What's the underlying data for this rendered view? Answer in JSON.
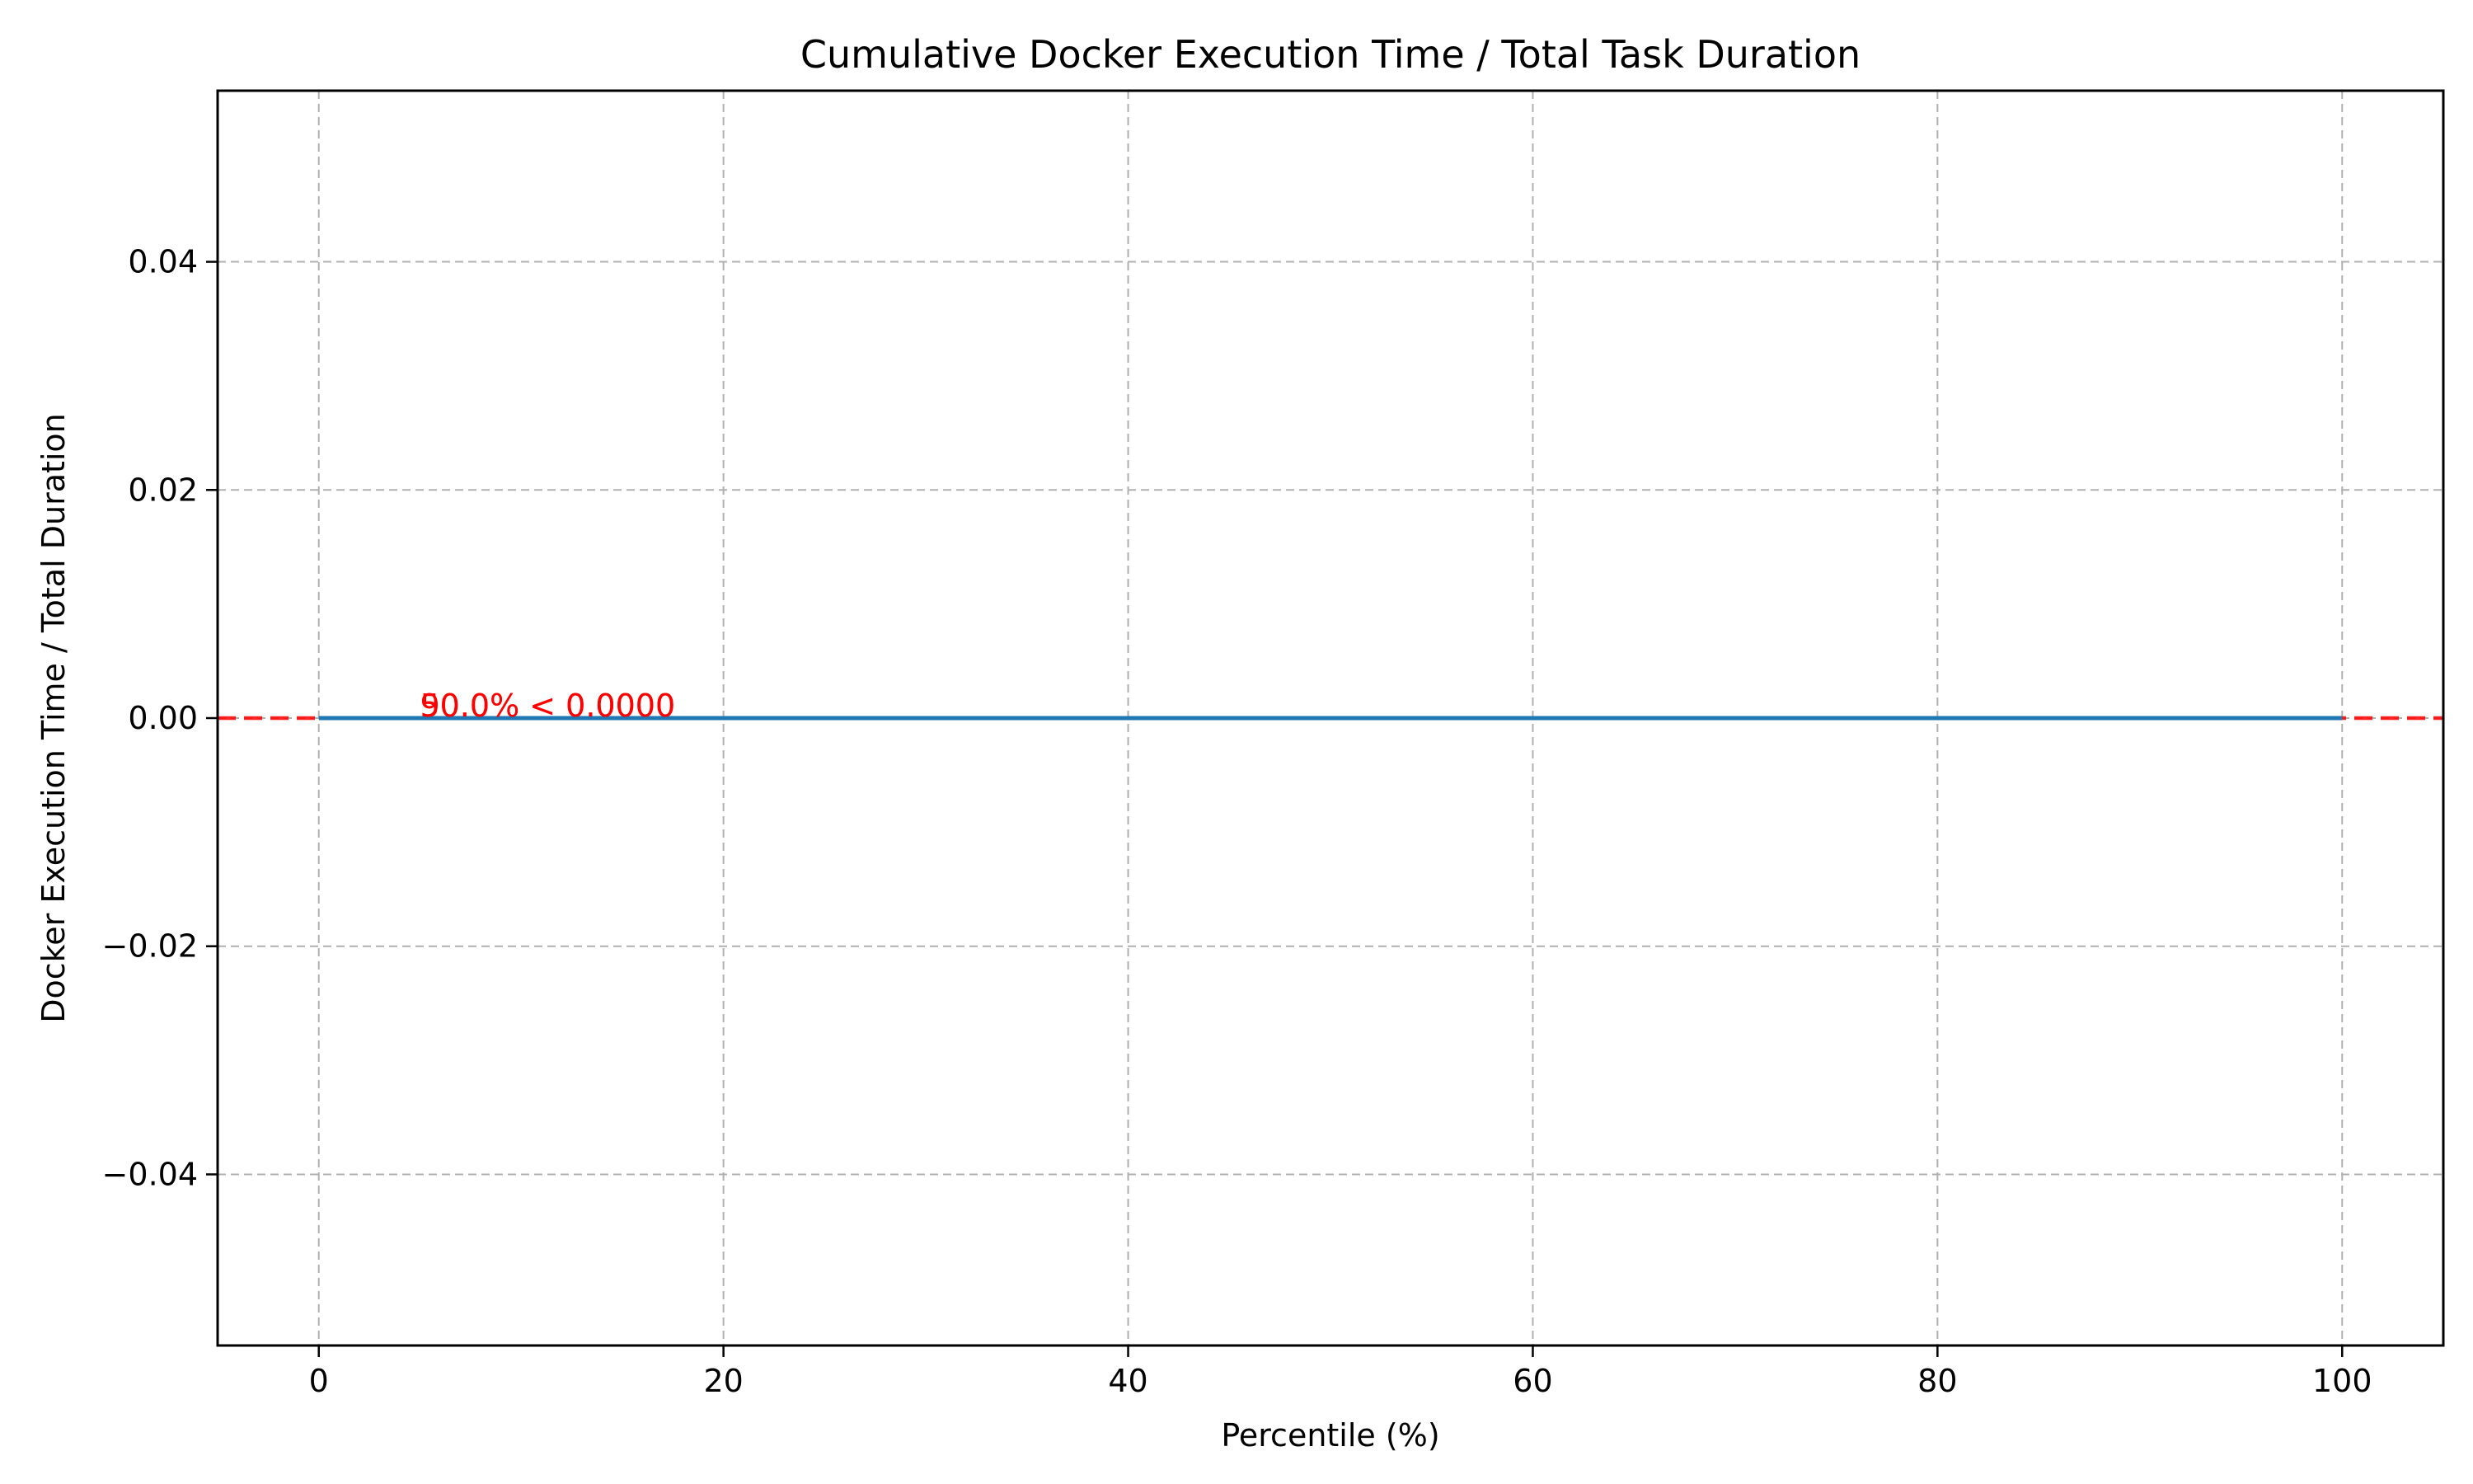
{
  "chart_data": {
    "type": "line",
    "title": "Cumulative Docker Execution Time / Total Task Duration",
    "xlabel": "Percentile (%)",
    "ylabel": "Docker Execution Time / Total Duration",
    "xlim": [
      -5,
      105
    ],
    "ylim": [
      -0.055,
      0.055
    ],
    "xticks": [
      0,
      20,
      40,
      60,
      80,
      100
    ],
    "xtick_labels": [
      "0",
      "20",
      "40",
      "60",
      "80",
      "100"
    ],
    "yticks": [
      0.04,
      0.02,
      0.0,
      -0.02,
      -0.04
    ],
    "ytick_labels": [
      "0.04",
      "0.02",
      "0.00",
      "−0.02",
      "−0.04"
    ],
    "grid": true,
    "series": [
      {
        "x": [
          0,
          10,
          20,
          30,
          40,
          50,
          60,
          70,
          80,
          90,
          100
        ],
        "y": [
          0,
          0,
          0,
          0,
          0,
          0,
          0,
          0,
          0,
          0,
          0
        ],
        "color": "#1f77b4"
      }
    ],
    "reference_lines": [
      {
        "y": 0.0,
        "color": "#ff0000",
        "style": "dashed"
      }
    ],
    "annotations": [
      {
        "x": 5,
        "y": 0.0,
        "text": "50.0% < 0.0000",
        "color": "#ff0000"
      },
      {
        "x": 5,
        "y": 0.0,
        "text": "90.0% < 0.0000",
        "color": "#ff0000"
      }
    ]
  }
}
